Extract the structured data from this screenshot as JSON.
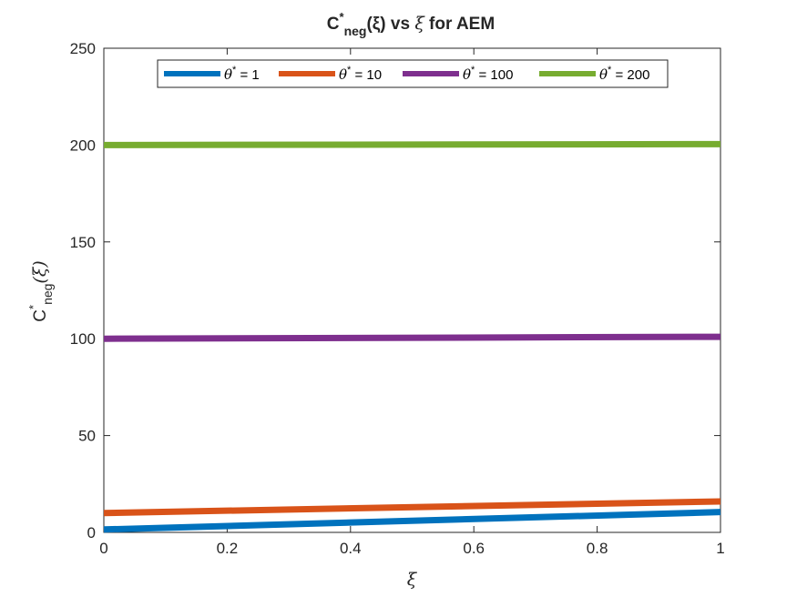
{
  "chart_data": {
    "type": "line",
    "title": {
      "prefix": "C",
      "sup": "*",
      "sub": "neg",
      "arg": "(ξ)",
      "mid": " vs ",
      "var": "ξ",
      "suffix": " for AEM"
    },
    "xlabel": "ξ",
    "ylabel": {
      "base": "C",
      "sup": "*",
      "sub": "neg",
      "arg": "(ξ)"
    },
    "xlim": [
      0,
      1
    ],
    "ylim": [
      0,
      250
    ],
    "xticks": [
      0,
      0.2,
      0.4,
      0.6,
      0.8,
      1
    ],
    "xtick_labels": [
      "0",
      "0.2",
      "0.4",
      "0.6",
      "0.8",
      "1"
    ],
    "yticks": [
      0,
      50,
      100,
      150,
      200,
      250
    ],
    "ytick_labels": [
      "0",
      "50",
      "100",
      "150",
      "200",
      "250"
    ],
    "grid": false,
    "legend_position": "top (horizontal, inside)",
    "legend_symbol": "θ",
    "series": [
      {
        "name": "θ* = 1",
        "sym": "θ",
        "sup": "*",
        "rest": " = 1",
        "color": "#0072BD",
        "x": [
          0,
          1
        ],
        "y": [
          1.5,
          10.5
        ]
      },
      {
        "name": "θ* = 10",
        "sym": "θ",
        "sup": "*",
        "rest": " = 10",
        "color": "#D95319",
        "x": [
          0,
          1
        ],
        "y": [
          10,
          16
        ]
      },
      {
        "name": "θ* = 100",
        "sym": "θ",
        "sup": "*",
        "rest": " = 100",
        "color": "#7E2F8E",
        "x": [
          0,
          1
        ],
        "y": [
          100,
          101
        ]
      },
      {
        "name": "θ* = 200",
        "sym": "θ",
        "sup": "*",
        "rest": " = 200",
        "color": "#77AC30",
        "x": [
          0,
          1
        ],
        "y": [
          200,
          200.5
        ]
      }
    ]
  }
}
